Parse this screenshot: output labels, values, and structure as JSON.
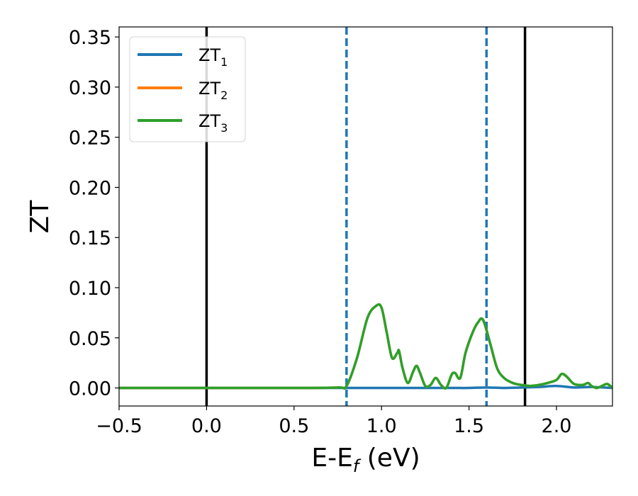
{
  "chart_data": {
    "type": "line",
    "xlabel": "E-E",
    "xlabel_sub": "f",
    "xlabel_unit": " (eV)",
    "ylabel": "ZT",
    "xlim": [
      -0.5,
      2.32
    ],
    "ylim": [
      -0.018,
      0.36
    ],
    "x_ticks": [
      -0.5,
      0.0,
      0.5,
      1.0,
      1.5,
      2.0
    ],
    "x_tick_labels": [
      "−0.5",
      "0.0",
      "0.5",
      "1.0",
      "1.5",
      "2.0"
    ],
    "y_ticks": [
      0.0,
      0.05,
      0.1,
      0.15,
      0.2,
      0.25,
      0.3,
      0.35
    ],
    "y_tick_labels": [
      "0.00",
      "0.05",
      "0.10",
      "0.15",
      "0.20",
      "0.25",
      "0.30",
      "0.35"
    ],
    "grid": false,
    "legend_position": "top-left",
    "vlines": [
      {
        "x": 0.0,
        "color": "#000000",
        "style": "solid"
      },
      {
        "x": 0.8,
        "color": "#1f77b4",
        "style": "dashed"
      },
      {
        "x": 1.6,
        "color": "#1f77b4",
        "style": "dashed"
      },
      {
        "x": 1.82,
        "color": "#000000",
        "style": "solid"
      }
    ],
    "series": [
      {
        "name": "ZT",
        "sub": "1",
        "color": "#1f77b4",
        "x": [
          -0.5,
          0.0,
          0.5,
          0.8,
          1.0,
          1.2,
          1.4,
          1.5,
          1.6,
          1.7,
          1.8,
          1.9,
          2.0,
          2.1,
          2.2,
          2.32
        ],
        "y": [
          0.0,
          0.0,
          0.0,
          0.0,
          0.0,
          0.0,
          0.0,
          0.0,
          0.0005,
          0.0,
          0.0005,
          0.001,
          0.002,
          0.0005,
          0.001,
          0.0
        ]
      },
      {
        "name": "ZT",
        "sub": "2",
        "color": "#ff7f0e",
        "x": [
          -0.5,
          0.0,
          0.5,
          0.75,
          0.8,
          0.86,
          0.92,
          0.97,
          1.0,
          1.03,
          1.06,
          1.09,
          1.1,
          1.12,
          1.15,
          1.18,
          1.2,
          1.22,
          1.25,
          1.28,
          1.31,
          1.34,
          1.37,
          1.4,
          1.42,
          1.45,
          1.48,
          1.52,
          1.55,
          1.58,
          1.62,
          1.66,
          1.7,
          1.75,
          1.8,
          1.85,
          1.9,
          1.95,
          2.0,
          2.03,
          2.06,
          2.1,
          2.15,
          2.18,
          2.2,
          2.23,
          2.26,
          2.29,
          2.32
        ],
        "y": [
          0.0,
          0.0,
          0.0,
          0.0005,
          0.002,
          0.03,
          0.07,
          0.082,
          0.08,
          0.055,
          0.03,
          0.035,
          0.037,
          0.02,
          0.005,
          0.016,
          0.022,
          0.015,
          0.002,
          0.003,
          0.01,
          0.003,
          0.0,
          0.013,
          0.015,
          0.01,
          0.035,
          0.055,
          0.065,
          0.068,
          0.045,
          0.02,
          0.01,
          0.005,
          0.003,
          0.002,
          0.003,
          0.005,
          0.008,
          0.014,
          0.011,
          0.004,
          0.003,
          0.005,
          0.002,
          0.0,
          0.002,
          0.004,
          0.0
        ]
      },
      {
        "name": "ZT",
        "sub": "3",
        "color": "#2ca02c",
        "x": [
          -0.5,
          0.0,
          0.5,
          0.75,
          0.8,
          0.86,
          0.92,
          0.97,
          1.0,
          1.03,
          1.06,
          1.09,
          1.1,
          1.12,
          1.15,
          1.18,
          1.2,
          1.22,
          1.25,
          1.28,
          1.31,
          1.34,
          1.37,
          1.4,
          1.42,
          1.45,
          1.48,
          1.52,
          1.55,
          1.58,
          1.62,
          1.66,
          1.7,
          1.75,
          1.8,
          1.85,
          1.9,
          1.95,
          2.0,
          2.03,
          2.06,
          2.1,
          2.15,
          2.18,
          2.2,
          2.23,
          2.26,
          2.29,
          2.32
        ],
        "y": [
          0.0,
          0.0,
          0.0,
          0.0005,
          0.002,
          0.03,
          0.07,
          0.082,
          0.08,
          0.055,
          0.03,
          0.035,
          0.037,
          0.02,
          0.005,
          0.016,
          0.022,
          0.015,
          0.002,
          0.003,
          0.01,
          0.003,
          0.0,
          0.013,
          0.015,
          0.01,
          0.035,
          0.055,
          0.065,
          0.068,
          0.045,
          0.02,
          0.01,
          0.005,
          0.003,
          0.002,
          0.003,
          0.005,
          0.008,
          0.014,
          0.011,
          0.004,
          0.003,
          0.005,
          0.002,
          0.0,
          0.002,
          0.004,
          0.0
        ]
      }
    ]
  }
}
